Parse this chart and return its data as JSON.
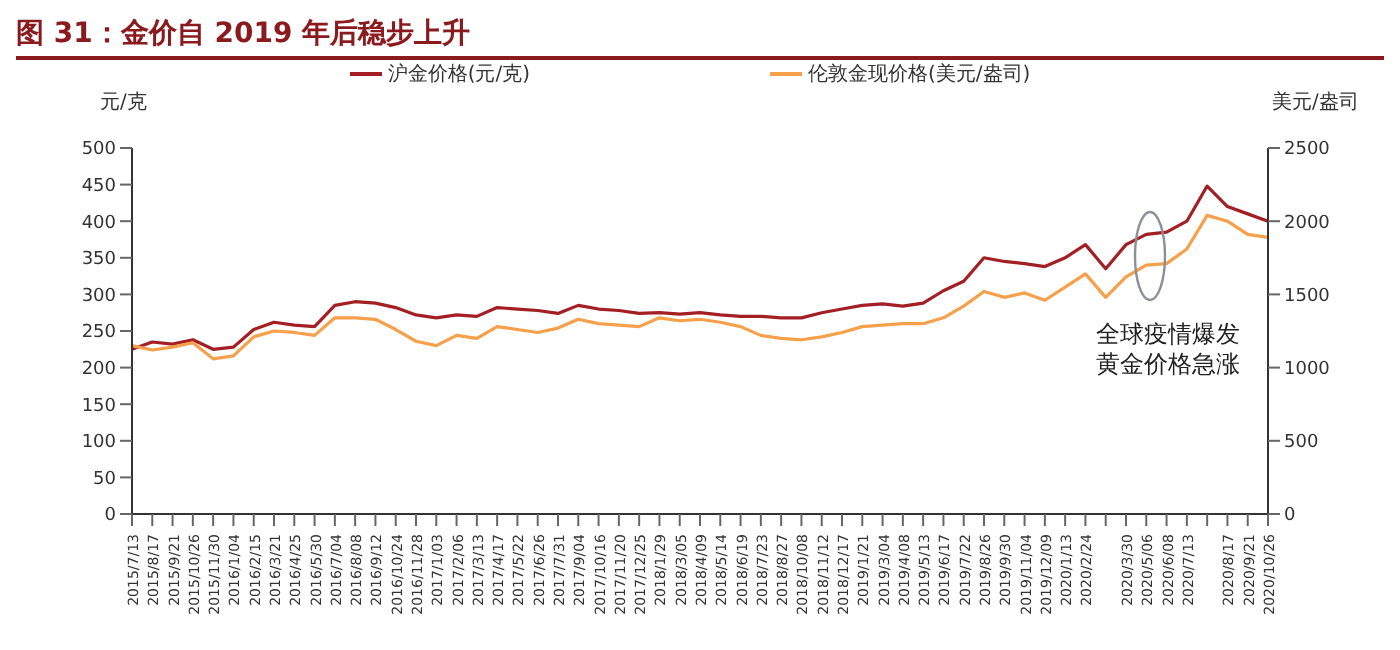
{
  "chart_data": {
    "type": "line",
    "title": "图 31：金价自 2019 年后稳步上升",
    "ylabel": "元/克",
    "y2label": "美元/盎司",
    "categories": [
      "2015/7/13",
      "2015/8/17",
      "2015/9/21",
      "2015/10/26",
      "2015/11/30",
      "2016/1/04",
      "2016/2/15",
      "2016/3/21",
      "2016/4/25",
      "2016/5/30",
      "2016/7/04",
      "2016/8/08",
      "2016/9/12",
      "2016/10/24",
      "2016/11/28",
      "2017/1/03",
      "2017/2/06",
      "2017/3/13",
      "2017/4/17",
      "2017/5/22",
      "2017/6/26",
      "2017/7/31",
      "2017/9/04",
      "2017/10/16",
      "2017/11/20",
      "2017/12/25",
      "2018/1/29",
      "2018/3/05",
      "2018/4/09",
      "2018/5/14",
      "2018/6/19",
      "2018/7/23",
      "2018/8/27",
      "2018/10/08",
      "2018/11/12",
      "2018/12/17",
      "2019/1/21",
      "2019/3/04",
      "2019/4/08",
      "2019/5/13",
      "2019/6/17",
      "2019/7/22",
      "2019/8/26",
      "2019/9/30",
      "2019/11/04",
      "2019/12/09",
      "2020/1/13",
      "2020/2/24",
      null,
      "2020/3/30",
      "2020/5/06",
      "2020/6/08",
      "2020/7/13",
      null,
      "2020/8/17",
      "2020/9/21",
      "2020/10/26"
    ],
    "series": [
      {
        "name": "沪金价格(元/克)",
        "color": "#a31f24",
        "values": [
          225,
          235,
          232,
          238,
          225,
          228,
          252,
          262,
          258,
          256,
          285,
          290,
          288,
          282,
          272,
          268,
          272,
          270,
          282,
          280,
          278,
          274,
          285,
          280,
          278,
          274,
          275,
          273,
          275,
          272,
          270,
          270,
          268,
          268,
          275,
          280,
          285,
          287,
          284,
          288,
          305,
          318,
          350,
          345,
          342,
          338,
          350,
          368,
          335,
          368,
          382,
          385,
          400,
          448,
          420,
          410,
          400
        ]
      },
      {
        "name": "伦敦金现价格(美元/盎司)",
        "color": "#f7a04b",
        "axis": "y2",
        "values": [
          1150,
          1120,
          1140,
          1170,
          1060,
          1080,
          1210,
          1250,
          1240,
          1220,
          1340,
          1340,
          1330,
          1260,
          1180,
          1150,
          1220,
          1200,
          1280,
          1260,
          1240,
          1270,
          1330,
          1300,
          1290,
          1280,
          1340,
          1320,
          1330,
          1310,
          1280,
          1220,
          1200,
          1190,
          1210,
          1240,
          1280,
          1290,
          1300,
          1300,
          1340,
          1420,
          1520,
          1480,
          1510,
          1460,
          1550,
          1640,
          1480,
          1620,
          1700,
          1710,
          1810,
          2040,
          2000,
          1910,
          1890
        ]
      }
    ],
    "ylim": [
      0,
      500
    ],
    "yticks": [
      0,
      50,
      100,
      150,
      200,
      250,
      300,
      350,
      400,
      450,
      500
    ],
    "y2lim": [
      0,
      2500
    ],
    "y2ticks": [
      0,
      500,
      1000,
      1500,
      2000,
      2500
    ],
    "grid": false,
    "legend": "top",
    "marker": "none",
    "line_style": "solid",
    "annotations": [
      "全球疫情爆发",
      "黄金价格急涨"
    ]
  }
}
